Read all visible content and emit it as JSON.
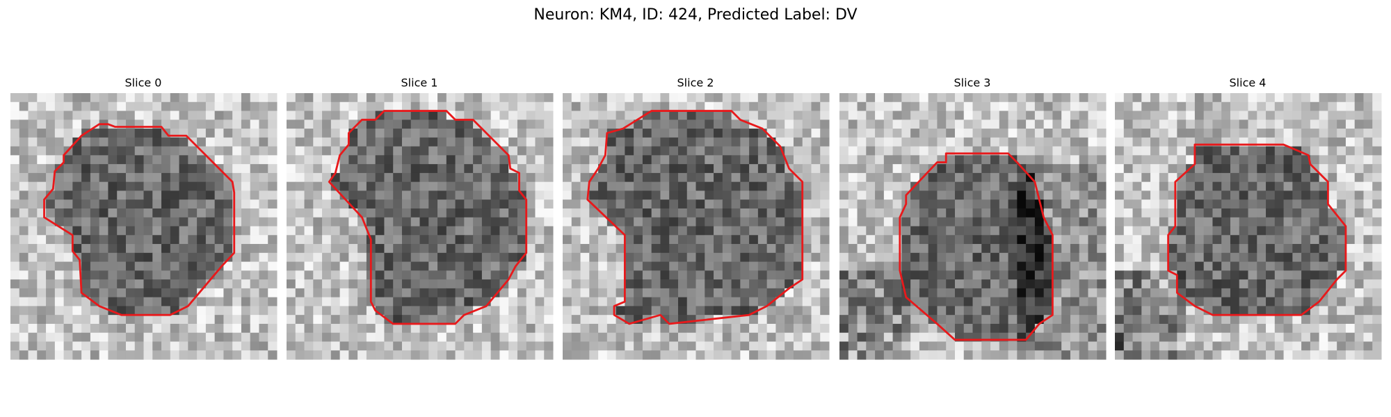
{
  "title": "Neuron: KM4, ID: 424, Predicted Label: DV",
  "panels": [
    {
      "title": "Slice 0"
    },
    {
      "title": "Slice 1"
    },
    {
      "title": "Slice 2"
    },
    {
      "title": "Slice 3"
    },
    {
      "title": "Slice 4"
    }
  ]
}
